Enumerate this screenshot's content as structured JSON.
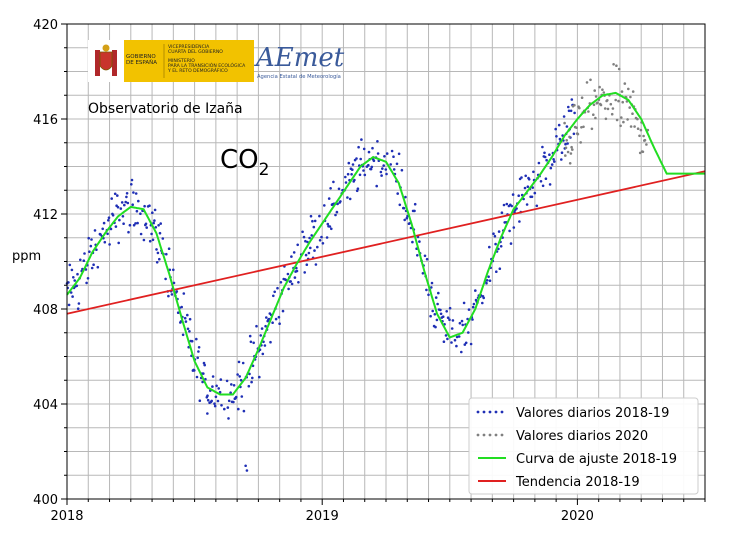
{
  "header": {
    "gov_small": "GOBIERNO\nDE ESPAÑA",
    "gov_ministry": "VICEPRESIDENCIA\nCUARTA DEL GOBIERNO\n\nMINISTERIO\nPARA LA TRANSICIÓN ECOLÓGICA\nY EL RETO DEMOGRÁFICO",
    "aemet_logo_text": "AEmet",
    "aemet_sub": "Agencia Estatal de Meteorología"
  },
  "annotations": {
    "station": "Observatorio de Izaña",
    "gas": "CO",
    "gas_subscript": "2"
  },
  "colors": {
    "daily_2018_19": "#1f2fb5",
    "daily_2020": "#808080",
    "fit": "#22dd22",
    "trend": "#e02020",
    "grid": "#b8b8b8"
  },
  "chart_data": {
    "type": "line",
    "ylabel": "ppm",
    "xlabel": "",
    "xlim": [
      2018.0,
      2020.5
    ],
    "ylim": [
      400,
      420
    ],
    "x_ticks": [
      2018,
      2019,
      2020
    ],
    "x_tick_labels": [
      "2018",
      "2019",
      "2020"
    ],
    "y_ticks": [
      400,
      404,
      408,
      412,
      416,
      420
    ],
    "y_tick_labels": [
      "400",
      "404",
      "408",
      "412",
      "416",
      "420"
    ],
    "grid": true,
    "legend_position": "bottom-right",
    "series": [
      {
        "name": "Valores diarios 2018-19",
        "style": "dots",
        "color": "#1f2fb5",
        "x_range": [
          2018.0,
          2019.99
        ],
        "description_points": [
          [
            2018.0,
            408.6
          ],
          [
            2018.05,
            409.8
          ],
          [
            2018.1,
            410.6
          ],
          [
            2018.15,
            410.9
          ],
          [
            2018.2,
            411.7
          ],
          [
            2018.25,
            412.3
          ],
          [
            2018.3,
            412.2
          ],
          [
            2018.35,
            411.2
          ],
          [
            2018.4,
            409.5
          ],
          [
            2018.45,
            407.6
          ],
          [
            2018.5,
            405.8
          ],
          [
            2018.55,
            404.7
          ],
          [
            2018.6,
            404.4
          ],
          [
            2018.65,
            404.4
          ],
          [
            2018.7,
            405.1
          ],
          [
            2018.75,
            406.3
          ],
          [
            2018.8,
            407.6
          ],
          [
            2018.85,
            408.9
          ],
          [
            2018.9,
            409.9
          ],
          [
            2018.95,
            410.8
          ],
          [
            2019.0,
            411.6
          ],
          [
            2019.05,
            412.4
          ],
          [
            2019.1,
            413.2
          ],
          [
            2019.15,
            414.0
          ],
          [
            2019.2,
            414.4
          ],
          [
            2019.25,
            414.2
          ],
          [
            2019.3,
            413.3
          ],
          [
            2019.35,
            411.6
          ],
          [
            2019.4,
            409.6
          ],
          [
            2019.45,
            407.8
          ],
          [
            2019.5,
            406.8
          ],
          [
            2019.55,
            407.0
          ],
          [
            2019.6,
            408.0
          ],
          [
            2019.65,
            409.6
          ],
          [
            2019.7,
            411.0
          ],
          [
            2019.75,
            412.2
          ],
          [
            2019.8,
            412.9
          ],
          [
            2019.85,
            413.6
          ],
          [
            2019.9,
            414.4
          ],
          [
            2019.95,
            415.3
          ],
          [
            2019.99,
            416.0
          ]
        ]
      },
      {
        "name": "Valores diarios 2020",
        "style": "dots",
        "color": "#808080",
        "x_range": [
          2019.95,
          2020.28
        ]
      },
      {
        "name": "Curva de ajuste 2018-19",
        "style": "line",
        "color": "#22dd22",
        "x": [
          2018.0,
          2018.05,
          2018.1,
          2018.15,
          2018.2,
          2018.25,
          2018.3,
          2018.35,
          2018.4,
          2018.45,
          2018.5,
          2018.55,
          2018.6,
          2018.65,
          2018.7,
          2018.75,
          2018.8,
          2018.85,
          2018.9,
          2018.95,
          2019.0,
          2019.05,
          2019.1,
          2019.15,
          2019.2,
          2019.25,
          2019.3,
          2019.35,
          2019.4,
          2019.45,
          2019.5,
          2019.55,
          2019.6,
          2019.65,
          2019.7,
          2019.75,
          2019.8,
          2019.85,
          2019.9,
          2019.95,
          2020.0,
          2020.05,
          2020.1,
          2020.15,
          2020.2,
          2020.25,
          2020.3,
          2020.35,
          2020.4,
          2020.45,
          2020.5
        ],
        "values": [
          408.6,
          409.3,
          410.4,
          411.2,
          411.9,
          412.3,
          412.2,
          411.2,
          409.5,
          407.6,
          405.8,
          404.7,
          404.4,
          404.4,
          405.1,
          406.3,
          407.6,
          408.9,
          409.9,
          410.8,
          411.6,
          412.4,
          413.2,
          414.0,
          414.4,
          414.2,
          413.3,
          411.6,
          409.6,
          407.8,
          406.8,
          407.0,
          408.0,
          409.6,
          411.0,
          412.2,
          412.9,
          413.6,
          414.4,
          415.3,
          416.0,
          416.6,
          417.0,
          417.1,
          416.8,
          416.0,
          414.8,
          413.7,
          413.7,
          413.7,
          413.7
        ]
      },
      {
        "name": "Tendencia 2018-19",
        "style": "line",
        "color": "#e02020",
        "x": [
          2018.0,
          2020.5
        ],
        "values": [
          407.8,
          413.8
        ]
      }
    ]
  }
}
